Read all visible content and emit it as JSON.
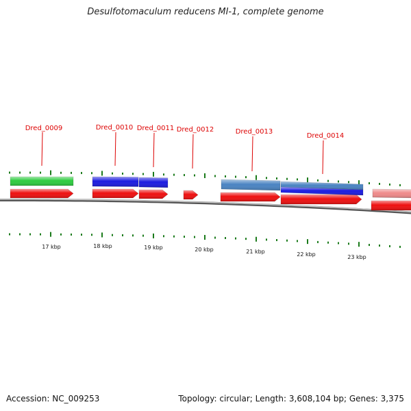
{
  "title": "Desulfotomaculum reducens MI-1, complete genome",
  "footer": {
    "accession": "Accession: NC_009253",
    "topology": "Topology: circular; Length: 3,608,104 bp; Genes: 3,375"
  },
  "colors": {
    "gene_forward": "#ee1111",
    "gene_pink": "#ef8a8a",
    "cds_green": "#2ecc40",
    "cds_blue": "#1c1ce0",
    "cds_steelblue": "#4a84c2",
    "label": "#dd0000",
    "tick": "#1a7a1a",
    "backbone": "#888888"
  },
  "scale_labels": [
    "17 kbp",
    "18 kbp",
    "19 kbp",
    "20 kbp",
    "21 kbp",
    "22 kbp",
    "23 kbp"
  ],
  "gene_labels": [
    "Dred_0009",
    "Dred_0010",
    "Dred_0011",
    "Dred_0012",
    "Dred_0013",
    "Dred_0014"
  ]
}
